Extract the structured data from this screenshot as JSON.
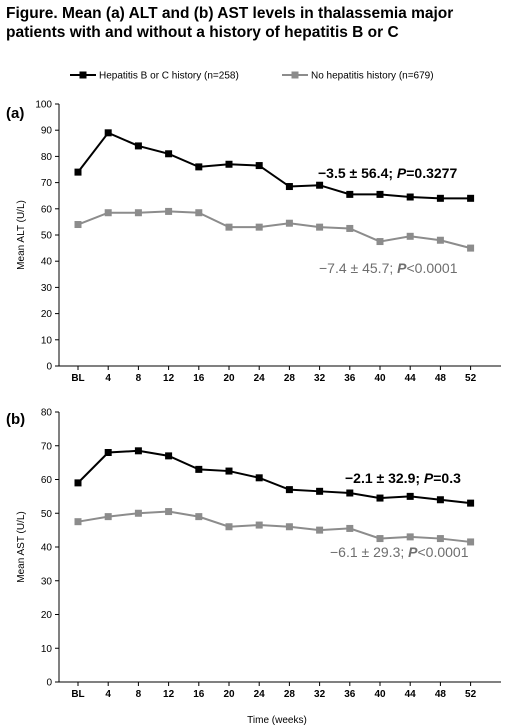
{
  "title_line1": "Figure. Mean (a) ALT and (b) AST levels in thalassemia major",
  "title_line2": "patients with and without a history of hepatitis B or C",
  "chart_data": [
    {
      "type": "line",
      "panel": "(a)",
      "ylabel": "Mean ALT (U/L)",
      "ylim": [
        0,
        100
      ],
      "yticks": [
        0,
        10,
        20,
        30,
        40,
        50,
        60,
        70,
        80,
        90,
        100
      ],
      "x": [
        "BL",
        "4",
        "8",
        "12",
        "16",
        "20",
        "24",
        "28",
        "32",
        "36",
        "40",
        "44",
        "48",
        "52"
      ],
      "series": [
        {
          "name": "Hepatitis B or C history (n=258)",
          "color": "#000000",
          "values": [
            74,
            89,
            84,
            81,
            76,
            77,
            76.5,
            68.5,
            69,
            65.5,
            65.5,
            64.5,
            64,
            64
          ]
        },
        {
          "name": "No hepatitis history (n=679)",
          "color": "#8c8c8c",
          "values": [
            54,
            58.5,
            58.5,
            59,
            58.5,
            53,
            53,
            54.5,
            53,
            52.5,
            47.5,
            49.5,
            48,
            45
          ]
        }
      ],
      "annotations": [
        {
          "prefix": "−3.5 ± 56.4; ",
          "p": "P",
          "suffix": "=0.3277",
          "color": "#000000"
        },
        {
          "prefix": "−7.4 ± 45.7; ",
          "p": "P",
          "suffix": "<0.0001",
          "color": "#6e6e6e"
        }
      ]
    },
    {
      "type": "line",
      "panel": "(b)",
      "ylabel": "Mean AST (U/L)",
      "xlabel": "Time (weeks)",
      "ylim": [
        0,
        80
      ],
      "yticks": [
        0,
        10,
        20,
        30,
        40,
        50,
        60,
        70,
        80
      ],
      "x": [
        "BL",
        "4",
        "8",
        "12",
        "16",
        "20",
        "24",
        "28",
        "32",
        "36",
        "40",
        "44",
        "48",
        "52"
      ],
      "series": [
        {
          "name": "Hepatitis B or C history (n=258)",
          "color": "#000000",
          "values": [
            59,
            68,
            68.5,
            67,
            63,
            62.5,
            60.5,
            57,
            56.5,
            56,
            54.5,
            55,
            54,
            53
          ]
        },
        {
          "name": "No hepatitis history (n=679)",
          "color": "#8c8c8c",
          "values": [
            47.5,
            49,
            50,
            50.5,
            49,
            46,
            46.5,
            46,
            45,
            45.5,
            42.5,
            43,
            42.5,
            41.5
          ]
        }
      ],
      "annotations": [
        {
          "prefix": "−2.1 ± 32.9; ",
          "p": "P",
          "suffix": "=0.3",
          "color": "#000000"
        },
        {
          "prefix": "−6.1 ± 29.3; ",
          "p": "P",
          "suffix": "<0.0001",
          "color": "#6e6e6e"
        }
      ]
    }
  ]
}
